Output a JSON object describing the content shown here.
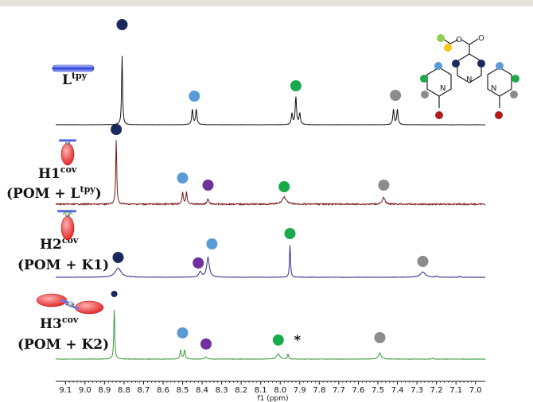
{
  "chart_data": {
    "type": "line",
    "xlabel": "f1 (ppm)",
    "xlim": [
      9.15,
      6.95
    ],
    "x_reversed": true,
    "ticks": [
      9.1,
      9.0,
      8.9,
      8.8,
      8.7,
      8.6,
      8.5,
      8.4,
      8.3,
      8.2,
      8.1,
      8.0,
      7.9,
      7.8,
      7.7,
      7.6,
      7.5,
      7.4,
      7.3,
      7.2,
      7.1,
      7.0
    ],
    "tick_labels": [
      "9.1",
      "9.0",
      "8.9",
      "8.8",
      "8.7",
      "8.6",
      "8.5",
      "8.4",
      "8.3",
      "8.2",
      "8.1",
      "8.0",
      "7.9",
      "7.8",
      "7.7",
      "7.6",
      "7.5",
      "7.4",
      "7.3",
      "7.2",
      "7.1",
      "7.0"
    ],
    "marker_colors": {
      "navy": "#1a2a5e",
      "lightblue": "#5b9bd5",
      "purple": "#7030a0",
      "green": "#1aaa4b",
      "gray": "#8c8c8c",
      "red": "#b01c1c",
      "yellow": "#f5c518",
      "lime": "#92d050"
    },
    "series": [
      {
        "name": "Ltpy",
        "label": "L",
        "label_sup": "tpy",
        "color": "#111111",
        "peaks": [
          {
            "ppm": 8.81,
            "h": 1.0,
            "w": 0.003
          },
          {
            "ppm": 8.45,
            "h": 0.22,
            "w": 0.004
          },
          {
            "ppm": 8.43,
            "h": 0.22,
            "w": 0.004
          },
          {
            "ppm": 7.94,
            "h": 0.16,
            "w": 0.004
          },
          {
            "ppm": 7.92,
            "h": 0.4,
            "w": 0.004
          },
          {
            "ppm": 7.9,
            "h": 0.16,
            "w": 0.004
          },
          {
            "ppm": 7.42,
            "h": 0.22,
            "w": 0.004
          },
          {
            "ppm": 7.4,
            "h": 0.22,
            "w": 0.004
          }
        ],
        "markers": [
          {
            "ppm": 8.81,
            "color": "navy"
          },
          {
            "ppm": 8.44,
            "color": "lightblue"
          },
          {
            "ppm": 7.92,
            "color": "green"
          },
          {
            "ppm": 7.41,
            "color": "gray"
          }
        ]
      },
      {
        "name": "H1cov",
        "label": "H1",
        "label_sup": "cov",
        "label2": "(POM + L",
        "label2_sup": "tpy",
        "label2_end": ")",
        "color": "#7b1616",
        "peaks": [
          {
            "ppm": 8.84,
            "h": 1.0,
            "w": 0.003
          },
          {
            "ppm": 8.5,
            "h": 0.18,
            "w": 0.004
          },
          {
            "ppm": 8.48,
            "h": 0.18,
            "w": 0.004
          },
          {
            "ppm": 8.37,
            "h": 0.08,
            "w": 0.005
          },
          {
            "ppm": 7.98,
            "h": 0.11,
            "w": 0.012
          },
          {
            "ppm": 7.47,
            "h": 0.1,
            "w": 0.008
          }
        ],
        "markers": [
          {
            "ppm": 8.84,
            "color": "navy"
          },
          {
            "ppm": 8.5,
            "color": "lightblue"
          },
          {
            "ppm": 8.37,
            "color": "purple"
          },
          {
            "ppm": 7.98,
            "color": "green"
          },
          {
            "ppm": 7.47,
            "color": "gray"
          }
        ]
      },
      {
        "name": "H2cov",
        "label": "H2",
        "label_sup": "cov",
        "label2": "(POM + K1)",
        "label2_sup": "",
        "label2_end": "",
        "color": "#2b2b8a",
        "peaks": [
          {
            "ppm": 8.83,
            "h": 0.14,
            "w": 0.018
          },
          {
            "ppm": 8.41,
            "h": 0.08,
            "w": 0.008
          },
          {
            "ppm": 8.37,
            "h": 0.3,
            "w": 0.008
          },
          {
            "ppm": 7.95,
            "h": 0.5,
            "w": 0.003
          },
          {
            "ppm": 7.27,
            "h": 0.08,
            "w": 0.015
          },
          {
            "ppm": 7.2,
            "h": 0.02,
            "w": 0.004
          },
          {
            "ppm": 7.08,
            "h": 0.02,
            "w": 0.003
          }
        ],
        "markers": [
          {
            "ppm": 8.83,
            "color": "navy"
          },
          {
            "ppm": 8.35,
            "color": "lightblue"
          },
          {
            "ppm": 8.42,
            "color": "purple"
          },
          {
            "ppm": 7.95,
            "color": "green"
          },
          {
            "ppm": 7.27,
            "color": "gray"
          }
        ]
      },
      {
        "name": "H3cov",
        "label": "H3",
        "label_sup": "cov",
        "label2": "(POM + K2)",
        "label2_sup": "",
        "label2_end": "",
        "color": "#3a9a3a",
        "peaks": [
          {
            "ppm": 8.85,
            "h": 1.0,
            "w": 0.003
          },
          {
            "ppm": 8.51,
            "h": 0.18,
            "w": 0.004
          },
          {
            "ppm": 8.49,
            "h": 0.18,
            "w": 0.004
          },
          {
            "ppm": 8.38,
            "h": 0.04,
            "w": 0.006
          },
          {
            "ppm": 8.01,
            "h": 0.1,
            "w": 0.01
          },
          {
            "ppm": 7.96,
            "h": 0.1,
            "w": 0.003
          },
          {
            "ppm": 7.49,
            "h": 0.12,
            "w": 0.008
          },
          {
            "ppm": 7.22,
            "h": 0.02,
            "w": 0.003
          }
        ],
        "markers": [
          {
            "ppm": 8.85,
            "color": "navy",
            "small": true
          },
          {
            "ppm": 8.5,
            "color": "lightblue"
          },
          {
            "ppm": 8.38,
            "color": "purple"
          },
          {
            "ppm": 8.01,
            "color": "green"
          },
          {
            "ppm": 7.49,
            "color": "gray"
          }
        ],
        "annotation": {
          "ppm": 7.95,
          "text": "*"
        }
      }
    ]
  },
  "structure": {
    "ester_carbonyl_o": "O",
    "ester_o": "O",
    "pyridine_n_left": "N",
    "pyridine_n_center": "N",
    "pyridine_n_right": "N"
  }
}
